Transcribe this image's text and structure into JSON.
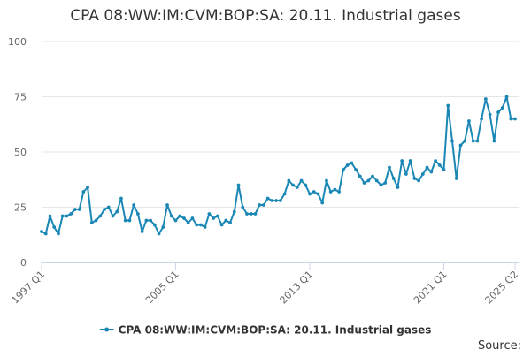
{
  "chart_data": {
    "type": "line",
    "title": "CPA 08:WW:IM:CVM:BOP:SA: 20.11. Industrial gases",
    "xlabel": "",
    "ylabel": "",
    "ylim": [
      0,
      100
    ],
    "yticks": [
      0,
      25,
      50,
      75,
      100
    ],
    "xticks": [
      "1997 Q1",
      "2005 Q1",
      "2013 Q1",
      "2021 Q1",
      "2025 Q2"
    ],
    "x_start": "1997 Q1",
    "x_end": "2025 Q2",
    "grid": true,
    "legend": "bottom",
    "series": [
      {
        "name": "CPA 08:WW:IM:CVM:BOP:SA: 20.11. Industrial gases",
        "color": "#1a87b5",
        "values": [
          14,
          13,
          21,
          16,
          13,
          21,
          21,
          22,
          24,
          24,
          32,
          34,
          18,
          19,
          21,
          24,
          25,
          21,
          23,
          29,
          19,
          19,
          26,
          22,
          14,
          19,
          19,
          17,
          13,
          16,
          26,
          21,
          19,
          21,
          20,
          18,
          20,
          17,
          17,
          16,
          22,
          20,
          21,
          17,
          19,
          18,
          23,
          35,
          25,
          22,
          22,
          22,
          26,
          26,
          29,
          28,
          28,
          28,
          31,
          37,
          35,
          34,
          37,
          35,
          31,
          32,
          31,
          27,
          37,
          32,
          33,
          32,
          42,
          44,
          45,
          42,
          39,
          36,
          37,
          39,
          37,
          35,
          36,
          43,
          38,
          34,
          46,
          40,
          46,
          38,
          37,
          40,
          43,
          41,
          46,
          44,
          42,
          71,
          55,
          38,
          53,
          55,
          64,
          55,
          55,
          65,
          74,
          67,
          55,
          68,
          70,
          75,
          65,
          65
        ]
      }
    ]
  },
  "source_label": "Source:"
}
